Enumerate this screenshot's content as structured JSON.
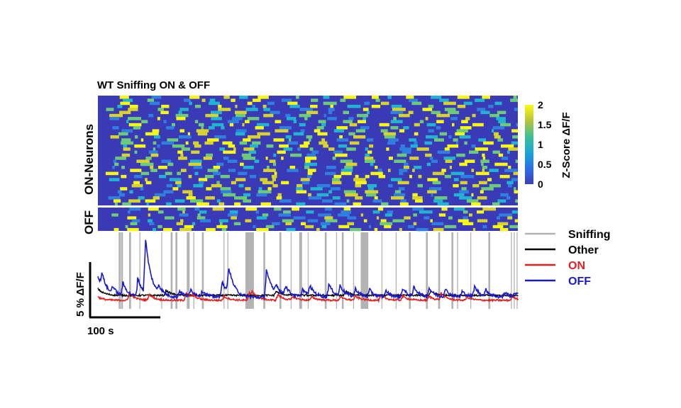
{
  "chart_data": [
    {
      "type": "heatmap",
      "title": "WT Sniffing ON & OFF",
      "row_groups": [
        {
          "label_colored": "ON",
          "label_rest": "-Neurons",
          "color": "#e02020",
          "rows": 36
        },
        {
          "label_colored": "OFF",
          "label_rest": "",
          "color": "#1a1acc",
          "rows": 8
        }
      ],
      "colorbar": {
        "label": "Z-Score ΔF/F",
        "ticks": [
          "2",
          "1.5",
          "1",
          "0.5",
          "0"
        ],
        "range": [
          0,
          2
        ],
        "colormap": "parula"
      }
    },
    {
      "type": "line",
      "legend": [
        "Sniffing",
        "Other",
        "ON",
        "OFF"
      ],
      "legend_position": "right",
      "scalebar_x": "100 s",
      "scalebar_y": "5 % ΔF/F",
      "colors": {
        "Sniffing": "#b3b3b3",
        "Other": "#000000",
        "ON": "#e02020",
        "OFF": "#1a1acc"
      },
      "sniffing_epochs_s": [
        [
          22,
          24
        ],
        [
          24.5,
          26.5
        ],
        [
          33,
          35
        ],
        [
          44,
          45
        ],
        [
          67,
          68
        ],
        [
          77,
          79
        ],
        [
          82,
          84
        ],
        [
          94,
          97
        ],
        [
          101,
          102
        ],
        [
          110,
          112
        ],
        [
          133,
          134
        ],
        [
          137,
          138
        ],
        [
          156,
          165
        ],
        [
          175,
          177
        ],
        [
          192,
          194
        ],
        [
          204,
          205
        ],
        [
          213,
          216
        ],
        [
          222,
          223
        ],
        [
          240,
          242
        ],
        [
          252,
          253
        ],
        [
          258,
          260
        ],
        [
          270,
          271
        ],
        [
          278,
          286
        ],
        [
          300,
          301
        ],
        [
          315,
          316
        ],
        [
          329,
          331
        ],
        [
          347,
          349
        ],
        [
          360,
          362
        ],
        [
          374,
          376
        ],
        [
          380,
          381
        ],
        [
          394,
          395
        ],
        [
          413,
          415
        ],
        [
          437,
          438
        ],
        [
          440,
          441
        ],
        [
          443,
          444
        ]
      ],
      "series": [
        {
          "name": "OFF",
          "peaks": [
            [
              0,
              2.6
            ],
            [
              4,
              1.8
            ],
            [
              15,
              1.0
            ],
            [
              26,
              1.6
            ],
            [
              42,
              2.2
            ],
            [
              50,
              6.8
            ],
            [
              64,
              0.9
            ],
            [
              86,
              0.8
            ],
            [
              98,
              0.9
            ],
            [
              110,
              0.7
            ],
            [
              131,
              2.0
            ],
            [
              138,
              3.3
            ],
            [
              178,
              3.5
            ],
            [
              188,
              1.1
            ],
            [
              198,
              1.2
            ],
            [
              216,
              1.0
            ],
            [
              224,
              1.2
            ],
            [
              244,
              1.6
            ],
            [
              256,
              1.3
            ],
            [
              272,
              1.0
            ],
            [
              287,
              0.9
            ],
            [
              304,
              0.8
            ],
            [
              322,
              1.1
            ],
            [
              334,
              1.2
            ],
            [
              350,
              1.1
            ],
            [
              367,
              1.0
            ],
            [
              385,
              0.7
            ],
            [
              398,
              1.3
            ],
            [
              410,
              0.8
            ],
            [
              430,
              0.6
            ],
            [
              441,
              0.5
            ]
          ]
        },
        {
          "name": "ON",
          "peaks": [
            [
              0,
              0.4
            ],
            [
              33,
              0.9
            ],
            [
              54,
              0.7
            ],
            [
              93,
              1.0
            ],
            [
              100,
              0.4
            ],
            [
              133,
              0.5
            ],
            [
              160,
              0.9
            ],
            [
              163,
              0.6
            ],
            [
              190,
              0.7
            ],
            [
              206,
              0.4
            ],
            [
              226,
              0.4
            ],
            [
              256,
              0.4
            ],
            [
              272,
              0.5
            ],
            [
              299,
              0.6
            ],
            [
              322,
              0.5
            ],
            [
              350,
              0.5
            ],
            [
              363,
              0.8
            ],
            [
              390,
              0.4
            ],
            [
              438,
              0.5
            ]
          ]
        },
        {
          "name": "Other",
          "peaks": [
            [
              0,
              0.8
            ],
            [
              72,
              0.6
            ],
            [
              188,
              0.5
            ],
            [
              262,
              0.5
            ],
            [
              352,
              0.5
            ]
          ]
        }
      ]
    }
  ]
}
